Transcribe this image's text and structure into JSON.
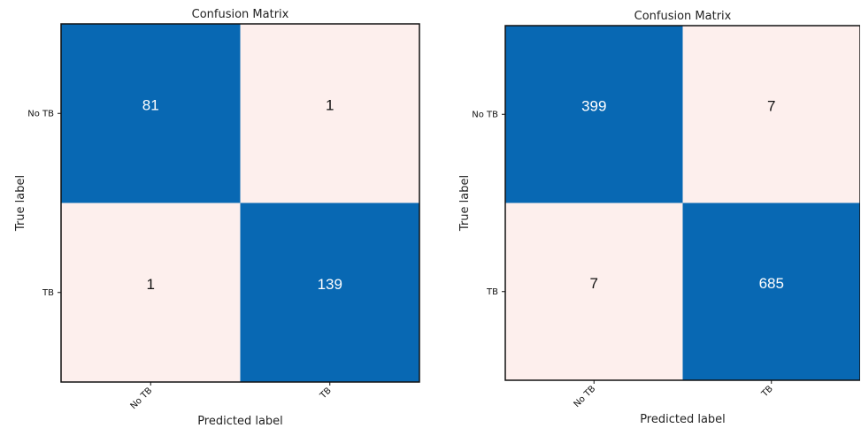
{
  "chart_data": [
    {
      "type": "heatmap",
      "title": "Confusion Matrix",
      "xlabel": "Predicted label",
      "ylabel": "True label",
      "x_categories": [
        "No TB",
        "TB"
      ],
      "y_categories": [
        "No TB",
        "TB"
      ],
      "values": [
        [
          81,
          1
        ],
        [
          1,
          139
        ]
      ],
      "colors": {
        "high": "#0868b3",
        "low": "#fdefed",
        "text_on_high": "#ffffff",
        "text_on_low": "#111111"
      }
    },
    {
      "type": "heatmap",
      "title": "Confusion Matrix",
      "xlabel": "Predicted label",
      "ylabel": "True label",
      "x_categories": [
        "No TB",
        "TB"
      ],
      "y_categories": [
        "No TB",
        "TB"
      ],
      "values": [
        [
          399,
          7
        ],
        [
          7,
          685
        ]
      ],
      "colors": {
        "high": "#0868b3",
        "low": "#fdefed",
        "text_on_high": "#ffffff",
        "text_on_low": "#111111"
      }
    }
  ]
}
